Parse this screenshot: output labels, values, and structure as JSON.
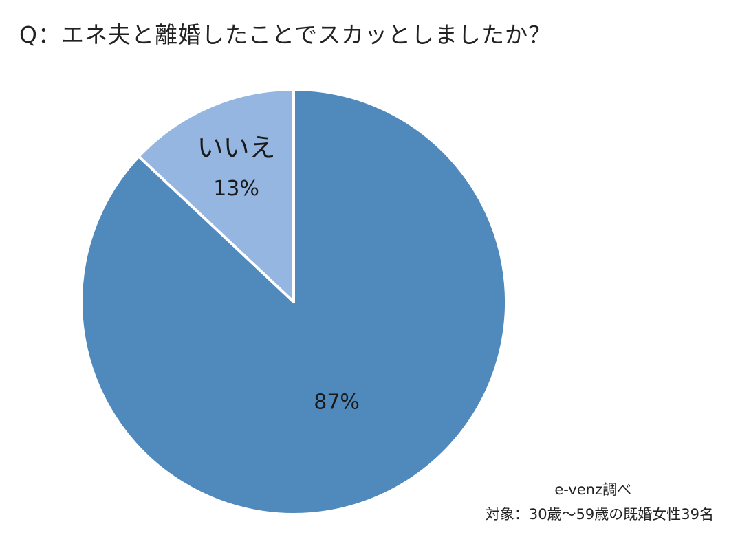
{
  "title": "Q：エネ夫と離婚したことでスカッとしましたか？",
  "chart_data": {
    "type": "pie",
    "title": "Q：エネ夫と離婚したことでスカッとしましたか？",
    "slices": [
      {
        "label": "",
        "value": 87,
        "value_label": "87%",
        "color": "#5089bb"
      },
      {
        "label": "いいえ",
        "value": 13,
        "value_label": "13%",
        "color": "#95b6e0"
      }
    ],
    "start": "12 o'clock, clockwise",
    "legend": "none"
  },
  "footer": {
    "source": "e-venz調べ",
    "target": "対象：30歳〜59歳の既婚女性39名"
  }
}
